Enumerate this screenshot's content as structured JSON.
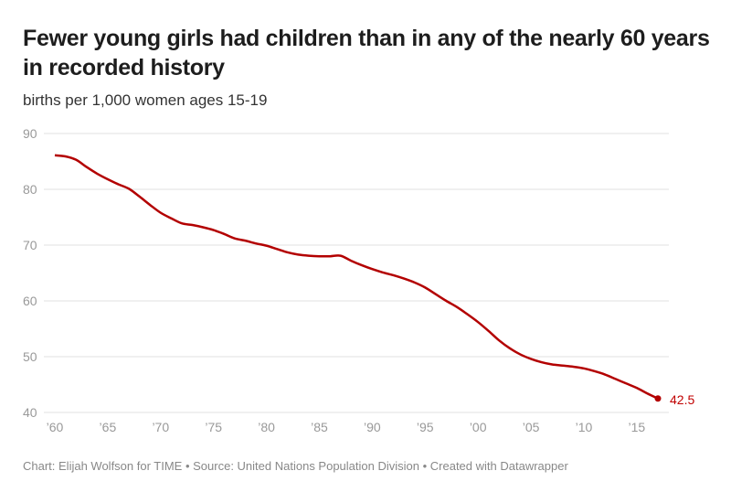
{
  "chart_data": {
    "type": "line",
    "title": "Fewer young girls had children than in any of the nearly 60 years in recorded history",
    "subtitle": "births per 1,000 women ages 15-19",
    "xlabel": "",
    "ylabel": "births per 1,000 women ages 15-19",
    "ylim": [
      40,
      90
    ],
    "xlim": [
      1960,
      2017
    ],
    "yticks": [
      90,
      80,
      70,
      60,
      50,
      40
    ],
    "xticks": [
      1960,
      1965,
      1970,
      1975,
      1980,
      1985,
      1990,
      1995,
      2000,
      2005,
      2010,
      2015
    ],
    "xtick_labels": [
      "’60",
      "’65",
      "’70",
      "’75",
      "’80",
      "’85",
      "’90",
      "’95",
      "’00",
      "’05",
      "’10",
      "’15"
    ],
    "grid": true,
    "line_color": "#b30000",
    "series": [
      {
        "name": "Births per 1,000 women ages 15-19",
        "x": [
          1960,
          1961,
          1962,
          1963,
          1964,
          1965,
          1966,
          1967,
          1968,
          1969,
          1970,
          1971,
          1972,
          1973,
          1974,
          1975,
          1976,
          1977,
          1978,
          1979,
          1980,
          1981,
          1982,
          1983,
          1984,
          1985,
          1986,
          1987,
          1988,
          1989,
          1990,
          1991,
          1992,
          1993,
          1994,
          1995,
          1996,
          1997,
          1998,
          1999,
          2000,
          2001,
          2002,
          2003,
          2004,
          2005,
          2006,
          2007,
          2008,
          2009,
          2010,
          2011,
          2012,
          2013,
          2014,
          2015,
          2016,
          2017
        ],
        "values": [
          86.1,
          85.9,
          85.3,
          84.0,
          82.8,
          81.8,
          80.9,
          80.1,
          78.7,
          77.2,
          75.8,
          74.8,
          73.9,
          73.6,
          73.2,
          72.7,
          72.0,
          71.2,
          70.8,
          70.3,
          69.9,
          69.3,
          68.7,
          68.3,
          68.1,
          68.0,
          68.0,
          68.1,
          67.2,
          66.4,
          65.7,
          65.1,
          64.6,
          64.0,
          63.3,
          62.4,
          61.2,
          60.0,
          58.9,
          57.6,
          56.2,
          54.6,
          52.9,
          51.5,
          50.4,
          49.6,
          49.0,
          48.6,
          48.4,
          48.2,
          47.9,
          47.4,
          46.8,
          46.0,
          45.2,
          44.4,
          43.4,
          42.5
        ]
      }
    ],
    "end_label": "42.5"
  },
  "footer": "Chart: Elijah Wolfson for TIME • Source: United Nations Population Division • Created with Datawrapper"
}
